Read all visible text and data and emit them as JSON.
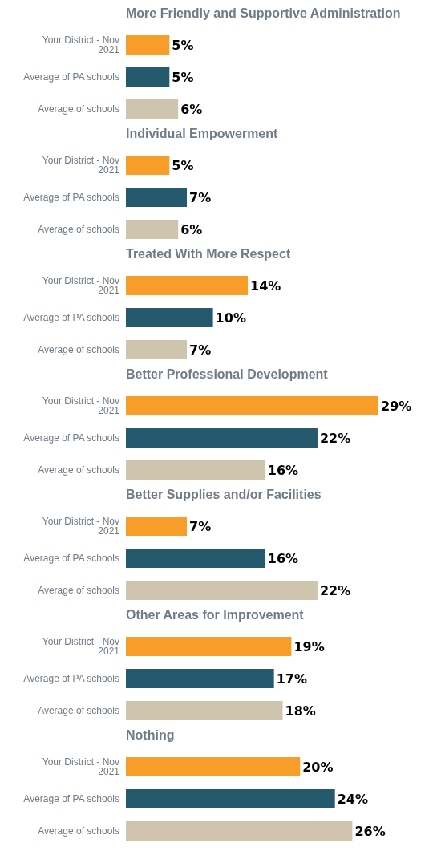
{
  "chart_data": [
    {
      "type": "bar",
      "orientation": "horizontal",
      "tick_labels": "y",
      "title": "More Friendly and Supportive Administration",
      "categories": [
        "Your District - Nov 2021",
        "Average of PA schools",
        "Average of schools"
      ],
      "values": [
        5,
        5,
        6
      ],
      "colors": [
        "#f89d2a",
        "#25596e",
        "#cfc5ae"
      ],
      "value_labels": [
        "5%",
        "5%",
        "6%"
      ]
    },
    {
      "type": "bar",
      "orientation": "horizontal",
      "tick_labels": "y",
      "title": "Individual Empowerment",
      "categories": [
        "Your District - Nov 2021",
        "Average of PA schools",
        "Average of schools"
      ],
      "values": [
        5,
        7,
        6
      ],
      "colors": [
        "#f89d2a",
        "#25596e",
        "#cfc5ae"
      ],
      "value_labels": [
        "5%",
        "7%",
        "6%"
      ]
    },
    {
      "type": "bar",
      "orientation": "horizontal",
      "tick_labels": "y",
      "title": "Treated With More Respect",
      "categories": [
        "Your District - Nov 2021",
        "Average of PA schools",
        "Average of schools"
      ],
      "values": [
        14,
        10,
        7
      ],
      "colors": [
        "#f89d2a",
        "#25596e",
        "#cfc5ae"
      ],
      "value_labels": [
        "14%",
        "10%",
        "7%"
      ]
    },
    {
      "type": "bar",
      "orientation": "horizontal",
      "tick_labels": "y",
      "title": "Better Professional Development",
      "categories": [
        "Your District - Nov 2021",
        "Average of PA schools",
        "Average of schools"
      ],
      "values": [
        29,
        22,
        16
      ],
      "colors": [
        "#f89d2a",
        "#25596e",
        "#cfc5ae"
      ],
      "value_labels": [
        "29%",
        "22%",
        "16%"
      ]
    },
    {
      "type": "bar",
      "orientation": "horizontal",
      "tick_labels": "y",
      "title": "Better Supplies and/or Facilities",
      "categories": [
        "Your District - Nov 2021",
        "Average of PA schools",
        "Average of schools"
      ],
      "values": [
        7,
        16,
        22
      ],
      "colors": [
        "#f89d2a",
        "#25596e",
        "#cfc5ae"
      ],
      "value_labels": [
        "7%",
        "16%",
        "22%"
      ]
    },
    {
      "type": "bar",
      "orientation": "horizontal",
      "tick_labels": "y",
      "title": "Other Areas for Improvement",
      "categories": [
        "Your District - Nov 2021",
        "Average of PA schools",
        "Average of schools"
      ],
      "values": [
        19,
        17,
        18
      ],
      "colors": [
        "#f89d2a",
        "#25596e",
        "#cfc5ae"
      ],
      "value_labels": [
        "19%",
        "17%",
        "18%"
      ]
    },
    {
      "type": "bar",
      "orientation": "horizontal",
      "tick_labels": "y",
      "title": "Nothing",
      "categories": [
        "Your District - Nov 2021",
        "Average of PA schools",
        "Average of schools"
      ],
      "values": [
        20,
        24,
        26
      ],
      "colors": [
        "#f89d2a",
        "#25596e",
        "#cfc5ae"
      ],
      "value_labels": [
        "20%",
        "24%",
        "26%"
      ]
    }
  ]
}
